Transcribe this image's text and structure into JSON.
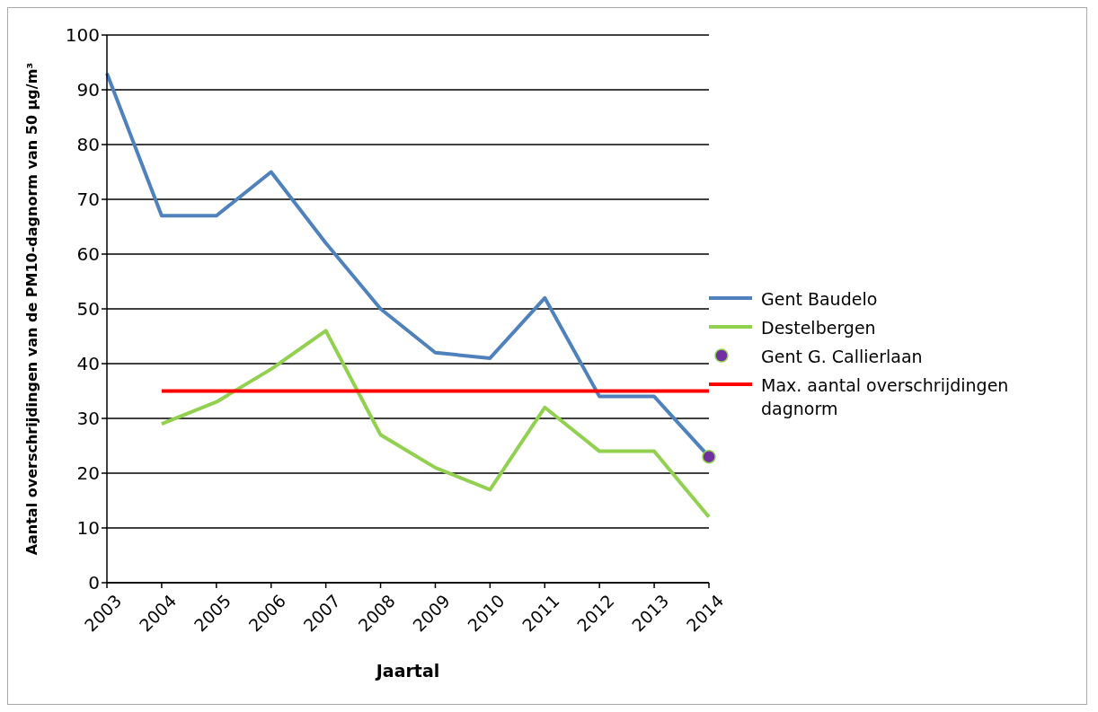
{
  "chart_data": {
    "type": "line",
    "xlabel": "Jaartal",
    "ylabel": "Aantal overschrijdingen van de PM10-dagnorm van 50 µg/m³",
    "categories": [
      "2003",
      "2004",
      "2005",
      "2006",
      "2007",
      "2008",
      "2009",
      "2010",
      "2011",
      "2012",
      "2013",
      "2014"
    ],
    "series": [
      {
        "name": "Gent Baudelo",
        "color": "#4f81bd",
        "values": [
          93,
          67,
          67,
          75,
          62,
          50,
          42,
          41,
          52,
          34,
          34,
          23
        ]
      },
      {
        "name": "Destelbergen",
        "color": "#92d050",
        "values": [
          null,
          29,
          33,
          39,
          46,
          27,
          21,
          17,
          32,
          24,
          24,
          12
        ]
      },
      {
        "name": "Gent G. Callierlaan",
        "type": "scatter",
        "marker": "circle",
        "color": "#7030a0",
        "values": [
          null,
          null,
          null,
          null,
          null,
          null,
          null,
          null,
          null,
          null,
          null,
          23
        ]
      },
      {
        "name": "Max. aantal overschrijdingen dagnorm",
        "color": "#ff0000",
        "values": [
          null,
          35,
          35,
          35,
          35,
          35,
          35,
          35,
          35,
          35,
          35,
          35
        ]
      }
    ],
    "ylim": [
      0,
      100
    ],
    "yticks": [
      0,
      10,
      20,
      30,
      40,
      50,
      60,
      70,
      80,
      90,
      100
    ],
    "grid": "y",
    "legend": "right",
    "marker": "none",
    "line_style": "solid"
  }
}
